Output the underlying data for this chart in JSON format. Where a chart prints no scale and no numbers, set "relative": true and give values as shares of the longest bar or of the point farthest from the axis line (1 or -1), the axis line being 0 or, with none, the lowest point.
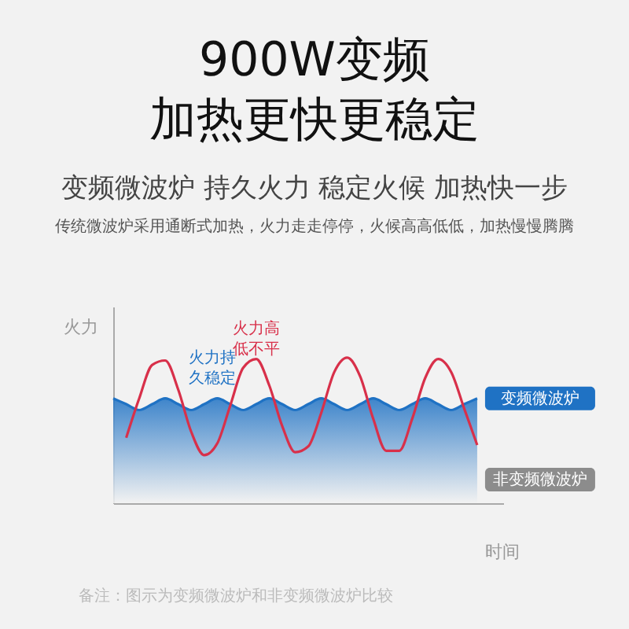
{
  "chart_data": {
    "type": "line",
    "title": "900W变频",
    "subtitle": "加热更快更稳定",
    "xlabel": "时间",
    "ylabel": "火力",
    "relative": true,
    "annotations": [
      "火力高低不平",
      "火力持久稳定",
      "变频微波炉 持久火力  稳定火候  加热快一步",
      "传统微波炉采用通断式加热，火力走走停停，火候高高低低，加热慢慢腾腾",
      "备注：图示为变频微波炉和非变频微波炉比较"
    ],
    "categories": [
      null,
      null,
      null,
      null,
      null,
      null,
      null,
      null,
      null,
      null,
      null,
      null,
      null,
      null,
      null,
      null,
      null,
      null,
      null,
      null,
      null,
      null,
      null,
      null,
      null,
      null,
      null,
      null,
      null
    ],
    "series": [
      {
        "name": "非变频微波炉",
        "color": "#d8304a",
        "values": [
          null,
          0.45,
          0.72,
          0.95,
          0.98,
          0.78,
          0.49,
          0.33,
          0.41,
          0.67,
          0.93,
          0.99,
          0.81,
          0.53,
          0.35,
          0.39,
          0.62,
          0.9,
          1,
          0.87,
          0.58,
          0.36,
          0.36,
          0.58,
          0.86,
          0.99,
          0.9,
          0.65,
          0.4
        ]
      },
      {
        "name": "变频微波炉",
        "type": "area",
        "color": "#1f72c4",
        "values": [
          0.72,
          0.68,
          0.64,
          0.68,
          0.72,
          0.68,
          0.64,
          0.68,
          0.72,
          0.68,
          0.64,
          0.68,
          0.72,
          0.68,
          0.64,
          0.68,
          0.72,
          0.68,
          0.64,
          0.68,
          0.72,
          0.68,
          0.64,
          0.68,
          0.72,
          0.68,
          0.64,
          0.68,
          0.72
        ]
      }
    ]
  }
}
